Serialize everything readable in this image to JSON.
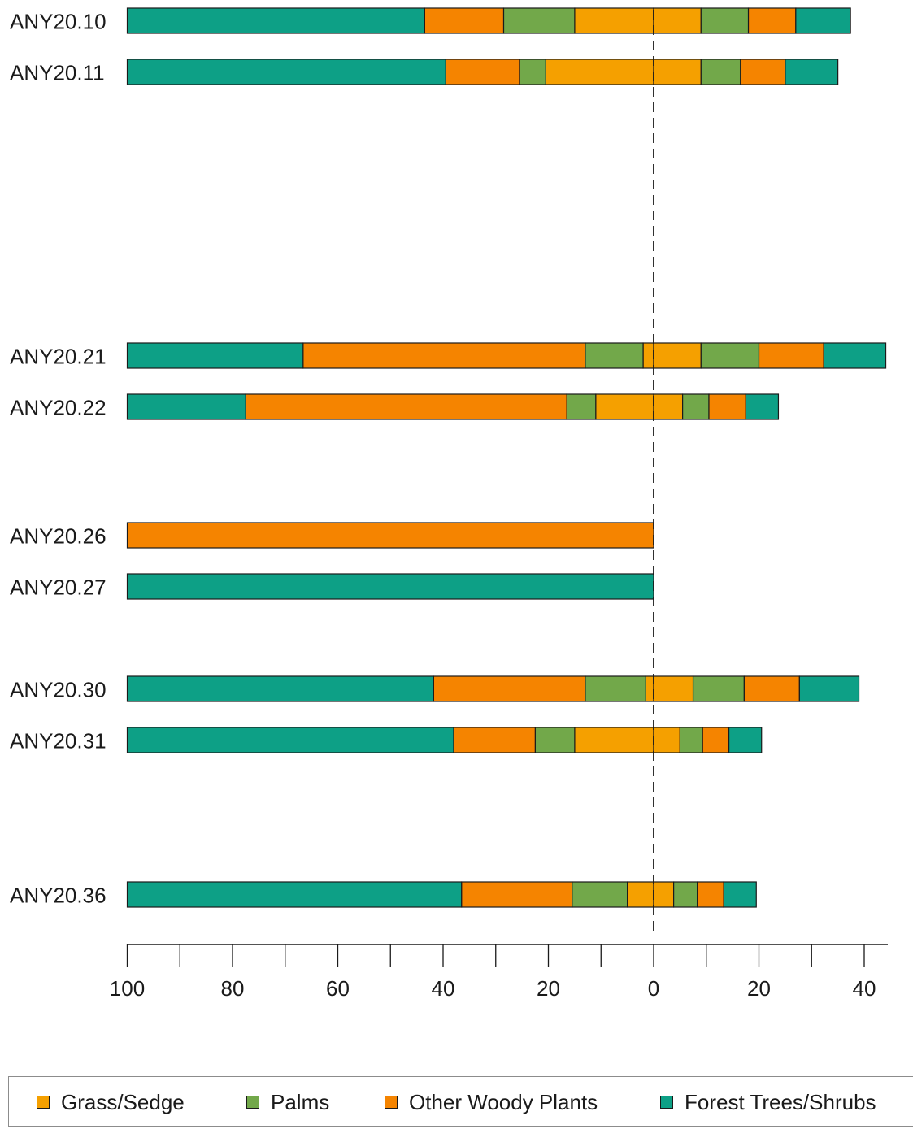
{
  "chart_data": {
    "type": "bar",
    "orientation": "horizontal-stacked-diverging",
    "categories": [
      "ANY20.10",
      "ANY20.11",
      "ANY20.21",
      "ANY20.22",
      "ANY20.26",
      "ANY20.27",
      "ANY20.30",
      "ANY20.31",
      "ANY20.36"
    ],
    "xticks": [
      {
        "value": -100,
        "label": "100"
      },
      {
        "value": -80,
        "label": "80"
      },
      {
        "value": -60,
        "label": "60"
      },
      {
        "value": -40,
        "label": "40"
      },
      {
        "value": -20,
        "label": "20"
      },
      {
        "value": 0,
        "label": "0"
      },
      {
        "value": 20,
        "label": "20"
      },
      {
        "value": 40,
        "label": "40"
      }
    ],
    "xlim": [
      -100,
      45
    ],
    "legend_position": "bottom",
    "series": [
      {
        "name": "Grass/Sedge",
        "color": "#f5a000",
        "left": [
          15,
          20.5,
          2,
          11,
          0,
          0,
          1.5,
          15,
          5
        ],
        "right": [
          9,
          9,
          9,
          5.5,
          0,
          0,
          7.5,
          5,
          3.8
        ]
      },
      {
        "name": "Palms",
        "color": "#72a84a",
        "left": [
          13.5,
          5,
          11,
          5.5,
          0,
          0,
          11.5,
          7.5,
          10.5
        ],
        "right": [
          9,
          7.5,
          11,
          5,
          0,
          0,
          9.7,
          4.3,
          4.5
        ]
      },
      {
        "name": "Other Woody Plants",
        "color": "#f58400",
        "left": [
          15,
          14,
          53.6,
          61,
          100,
          0,
          28.8,
          15.5,
          21
        ],
        "right": [
          9,
          8.5,
          12.3,
          7,
          0,
          0,
          10.5,
          5,
          5
        ]
      },
      {
        "name": "Forest Trees/Shrubs",
        "color": "#0da086",
        "left": [
          56.5,
          60.5,
          33.4,
          22.5,
          0,
          100,
          58.2,
          62,
          63.5
        ],
        "right": [
          10.4,
          10,
          11.8,
          6.2,
          0,
          0,
          11.3,
          6.2,
          6.2
        ]
      }
    ]
  }
}
